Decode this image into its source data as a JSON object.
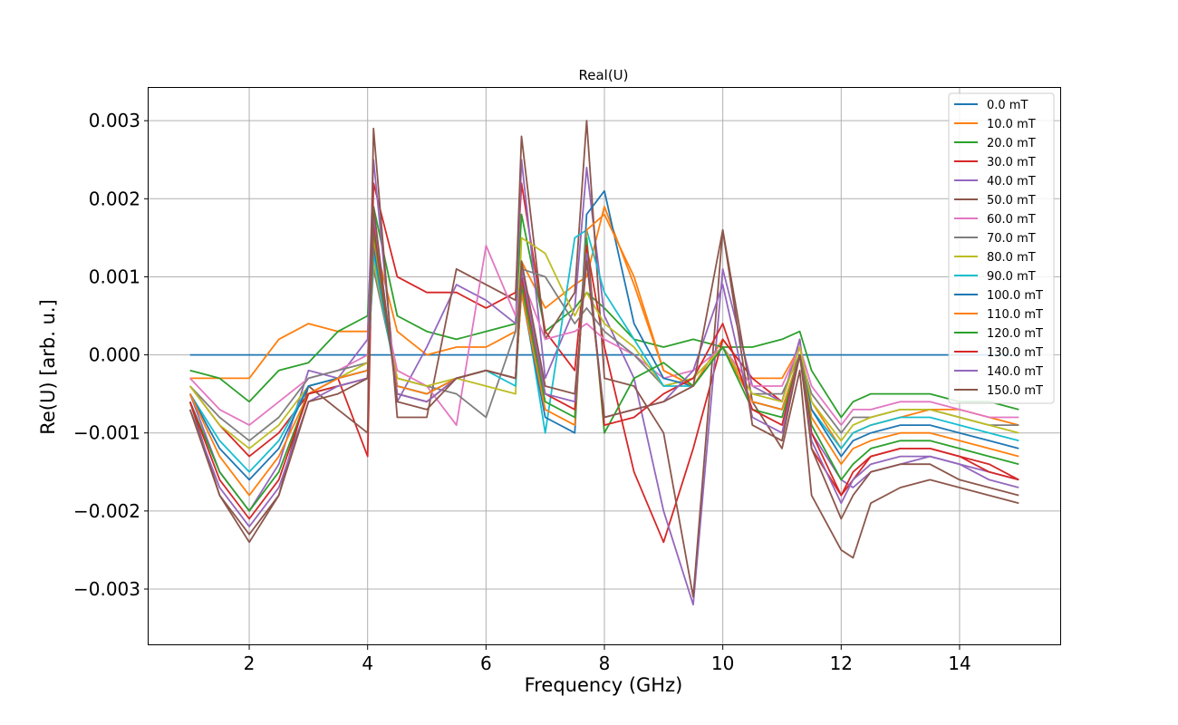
{
  "chart_data": {
    "type": "line",
    "title": "Real(U)",
    "xlabel": "Frequency (GHz)",
    "ylabel": "Re(U) [arb. u.]",
    "xlim": [
      0.3,
      15.7
    ],
    "ylim": [
      -0.00372,
      0.00342
    ],
    "xticks": [
      2,
      4,
      6,
      8,
      10,
      12,
      14
    ],
    "xtick_labels": [
      "2",
      "4",
      "6",
      "8",
      "10",
      "12",
      "14"
    ],
    "yticks": [
      -0.003,
      -0.002,
      -0.001,
      0.0,
      0.001,
      0.002,
      0.003
    ],
    "ytick_labels": [
      "−0.003",
      "−0.002",
      "−0.001",
      "0.000",
      "0.001",
      "0.002",
      "0.003"
    ],
    "grid": true,
    "legend_position": "top-right",
    "x": [
      1.0,
      1.5,
      2.0,
      2.5,
      3.0,
      3.5,
      4.0,
      4.1,
      4.5,
      5.0,
      5.5,
      6.0,
      6.5,
      6.6,
      7.0,
      7.5,
      7.7,
      8.0,
      8.5,
      9.0,
      9.5,
      10.0,
      10.5,
      11.0,
      11.3,
      11.5,
      12.0,
      12.2,
      12.5,
      13.0,
      13.5,
      14.0,
      14.5,
      15.0
    ],
    "series": [
      {
        "name": "0.0 mT",
        "color": "#1f77b4",
        "values": [
          0,
          0,
          0,
          0,
          0,
          0,
          0,
          0,
          0,
          0,
          0,
          0,
          0,
          0,
          0,
          0,
          0,
          0,
          0,
          0,
          0,
          0,
          0,
          0,
          0,
          0,
          0,
          0,
          0,
          0,
          0,
          0,
          0,
          0
        ]
      },
      {
        "name": "10.0 mT",
        "color": "#ff7f0e",
        "values": [
          -0.0003,
          -0.0003,
          -0.0003,
          0.0002,
          0.0004,
          0.0003,
          0.0003,
          0.0015,
          0.0003,
          0.0,
          0.0001,
          0.0001,
          0.0003,
          0.0012,
          0.0006,
          0.0009,
          0.001,
          0.0019,
          0.0009,
          -0.0002,
          -0.0004,
          0.0002,
          -0.0003,
          -0.0003,
          0.0001,
          -0.0006,
          -0.0012,
          -0.001,
          -0.0009,
          -0.0008,
          -0.0007,
          -0.0007,
          -0.0008,
          -0.0009
        ]
      },
      {
        "name": "20.0 mT",
        "color": "#2ca02c",
        "values": [
          -0.0002,
          -0.0003,
          -0.0006,
          -0.0002,
          -0.0001,
          0.0003,
          0.0005,
          0.0019,
          0.0005,
          0.0003,
          0.0002,
          0.0003,
          0.0004,
          0.0018,
          0.0003,
          0.0006,
          0.0008,
          0.0006,
          0.0002,
          0.0001,
          0.0002,
          0.0001,
          0.0001,
          0.0002,
          0.0003,
          -0.0002,
          -0.0008,
          -0.0006,
          -0.0005,
          -0.0005,
          -0.0005,
          -0.0006,
          -0.0006,
          -0.0007
        ]
      },
      {
        "name": "30.0 mT",
        "color": "#d62728",
        "values": [
          -0.0004,
          -0.0009,
          -0.0013,
          -0.001,
          -0.0005,
          -0.0003,
          -0.0013,
          0.0022,
          0.001,
          0.0008,
          0.0008,
          0.0006,
          0.0008,
          0.0022,
          0.0003,
          -0.0002,
          0.0014,
          0.0001,
          -0.0015,
          -0.0024,
          -0.0012,
          0.0002,
          -0.0003,
          -0.0006,
          0.0002,
          -0.0012,
          -0.0018,
          -0.0016,
          -0.0013,
          -0.0012,
          -0.0012,
          -0.0013,
          -0.0014,
          -0.0016
        ]
      },
      {
        "name": "40.0 mT",
        "color": "#9467bd",
        "values": [
          -0.0005,
          -0.0015,
          -0.002,
          -0.0014,
          -0.0002,
          -0.0003,
          0.0002,
          0.0025,
          -0.0006,
          0.0001,
          0.0009,
          0.0007,
          0.0004,
          0.0025,
          -0.0003,
          0.0006,
          0.0024,
          0.0005,
          -0.0003,
          -0.002,
          -0.0032,
          0.0011,
          -0.0004,
          -0.0006,
          0.0002,
          -0.001,
          -0.0016,
          -0.0017,
          -0.0015,
          -0.0014,
          -0.0013,
          -0.0014,
          -0.0015,
          -0.0016
        ]
      },
      {
        "name": "50.0 mT",
        "color": "#8c564b",
        "values": [
          -0.0006,
          -0.0018,
          -0.0024,
          -0.0018,
          -0.0004,
          -0.0007,
          -0.001,
          0.0029,
          -0.0008,
          -0.0008,
          0.0011,
          0.0009,
          0.0007,
          0.0028,
          0.0002,
          0.0008,
          0.003,
          -0.0003,
          -0.0004,
          -0.001,
          -0.0031,
          0.0016,
          -0.0006,
          -0.0012,
          -0.0002,
          -0.0018,
          -0.0025,
          -0.0026,
          -0.0019,
          -0.0017,
          -0.0016,
          -0.0017,
          -0.0018,
          -0.0019
        ]
      },
      {
        "name": "60.0 mT",
        "color": "#e377c2",
        "values": [
          -0.0003,
          -0.0007,
          -0.0009,
          -0.0006,
          -0.0003,
          -0.0002,
          0.0,
          0.0012,
          -0.0002,
          -0.0004,
          -0.0009,
          0.0014,
          0.0005,
          0.001,
          0.0002,
          0.0003,
          0.0004,
          0.0002,
          0.0,
          -0.0003,
          -0.0002,
          0.0001,
          -0.0004,
          -0.0004,
          0.0001,
          -0.0004,
          -0.0009,
          -0.0007,
          -0.0007,
          -0.0006,
          -0.0006,
          -0.0007,
          -0.0008,
          -0.0008
        ]
      },
      {
        "name": "70.0 mT",
        "color": "#7f7f7f",
        "values": [
          -0.0004,
          -0.0008,
          -0.0011,
          -0.0008,
          -0.0003,
          -0.0002,
          -0.0001,
          0.0011,
          -0.0003,
          -0.0004,
          -0.0005,
          -0.0008,
          0.0003,
          0.0011,
          0.001,
          0.0004,
          0.0006,
          0.0003,
          0.0,
          -0.0004,
          -0.0003,
          0.0001,
          -0.0005,
          -0.0005,
          0.0,
          -0.0005,
          -0.001,
          -0.0008,
          -0.0008,
          -0.0007,
          -0.0007,
          -0.0008,
          -0.0009,
          -0.0009
        ]
      },
      {
        "name": "80.0 mT",
        "color": "#bcbd22",
        "values": [
          -0.0004,
          -0.0009,
          -0.0012,
          -0.0009,
          -0.0004,
          -0.0003,
          -0.0001,
          0.0012,
          -0.0003,
          -0.0004,
          -0.0003,
          -0.0004,
          -0.0005,
          0.0015,
          0.0013,
          0.0005,
          0.0008,
          0.0004,
          0.0001,
          -0.0004,
          -0.0003,
          0.0001,
          -0.0005,
          -0.0006,
          0.0001,
          -0.0006,
          -0.0011,
          -0.0009,
          -0.0008,
          -0.0007,
          -0.0007,
          -0.0008,
          -0.0009,
          -0.001
        ]
      },
      {
        "name": "90.0 mT",
        "color": "#17becf",
        "values": [
          -0.0005,
          -0.0011,
          -0.0015,
          -0.0011,
          -0.0004,
          -0.0003,
          -0.0002,
          0.0013,
          -0.0004,
          -0.0005,
          -0.0003,
          -0.0002,
          -0.0004,
          0.0009,
          -0.001,
          0.0015,
          0.0016,
          0.0008,
          0.0002,
          -0.0004,
          -0.0004,
          0.0001,
          -0.0006,
          -0.0007,
          0.0,
          -0.0007,
          -0.0012,
          -0.001,
          -0.0009,
          -0.0008,
          -0.0008,
          -0.0009,
          -0.001,
          -0.0011
        ]
      },
      {
        "name": "100.0 mT",
        "color": "#1f77b4",
        "values": [
          -0.0005,
          -0.0012,
          -0.0016,
          -0.0012,
          -0.0004,
          -0.0003,
          -0.0002,
          0.0014,
          -0.0004,
          -0.0005,
          -0.0003,
          -0.0002,
          -0.0003,
          0.0008,
          -0.0008,
          -0.001,
          0.0018,
          0.0021,
          0.0004,
          -0.0003,
          -0.0004,
          0.0001,
          -0.0006,
          -0.0007,
          0.0,
          -0.0007,
          -0.0013,
          -0.0011,
          -0.001,
          -0.0009,
          -0.0009,
          -0.001,
          -0.0011,
          -0.0012
        ]
      },
      {
        "name": "110.0 mT",
        "color": "#ff7f0e",
        "values": [
          -0.0005,
          -0.0013,
          -0.0018,
          -0.0013,
          -0.0005,
          -0.0003,
          -0.0002,
          0.0015,
          -0.0004,
          -0.0005,
          -0.0003,
          -0.0002,
          -0.0003,
          0.0008,
          -0.0007,
          -0.0009,
          0.0016,
          0.0018,
          0.001,
          -0.0002,
          -0.0004,
          0.0001,
          -0.0006,
          -0.0007,
          0.0,
          -0.0008,
          -0.0014,
          -0.0012,
          -0.0011,
          -0.001,
          -0.001,
          -0.0011,
          -0.0012,
          -0.0013
        ]
      },
      {
        "name": "120.0 mT",
        "color": "#2ca02c",
        "values": [
          -0.0006,
          -0.0015,
          -0.002,
          -0.0015,
          -0.0005,
          -0.0004,
          -0.0003,
          0.0016,
          -0.0005,
          -0.0006,
          -0.0003,
          -0.0002,
          -0.0003,
          0.0009,
          -0.0006,
          -0.0008,
          0.0015,
          -0.001,
          -0.0003,
          -0.0001,
          -0.0004,
          0.0001,
          -0.0007,
          -0.0008,
          0.0,
          -0.0009,
          -0.0016,
          -0.0014,
          -0.0012,
          -0.0011,
          -0.0011,
          -0.0012,
          -0.0013,
          -0.0014
        ]
      },
      {
        "name": "130.0 mT",
        "color": "#d62728",
        "values": [
          -0.0006,
          -0.0016,
          -0.0021,
          -0.0016,
          -0.0005,
          -0.0004,
          -0.0003,
          0.0017,
          -0.0005,
          -0.0006,
          -0.0003,
          -0.0002,
          -0.0003,
          0.001,
          -0.0005,
          -0.0007,
          0.0014,
          -0.0009,
          -0.0008,
          -0.0005,
          -0.0003,
          0.0004,
          -0.0007,
          -0.0009,
          0.0,
          -0.001,
          -0.0018,
          -0.0015,
          -0.0013,
          -0.0012,
          -0.0012,
          -0.0013,
          -0.0015,
          -0.0016
        ]
      },
      {
        "name": "140.0 mT",
        "color": "#9467bd",
        "values": [
          -0.0007,
          -0.0017,
          -0.0022,
          -0.0017,
          -0.0006,
          -0.0004,
          -0.0003,
          0.0018,
          -0.0005,
          -0.0006,
          -0.0003,
          -0.0002,
          -0.0003,
          0.0011,
          -0.0005,
          -0.0006,
          0.0013,
          -0.0008,
          -0.0007,
          -0.0006,
          -0.0002,
          0.0009,
          -0.0008,
          -0.001,
          0.0,
          -0.0011,
          -0.0019,
          -0.0016,
          -0.0014,
          -0.0013,
          -0.0013,
          -0.0014,
          -0.0016,
          -0.0017
        ]
      },
      {
        "name": "150.0 mT",
        "color": "#8c564b",
        "values": [
          -0.0007,
          -0.0018,
          -0.0023,
          -0.0018,
          -0.0006,
          -0.0005,
          -0.0003,
          0.0019,
          -0.0006,
          -0.0007,
          -0.0003,
          -0.0002,
          -0.0003,
          0.0012,
          -0.0004,
          -0.0005,
          0.0012,
          -0.0008,
          -0.0007,
          -0.0006,
          -0.0004,
          0.0016,
          -0.0009,
          -0.0011,
          0.0,
          -0.0012,
          -0.0021,
          -0.0018,
          -0.0015,
          -0.0014,
          -0.0014,
          -0.0016,
          -0.0017,
          -0.0018
        ]
      }
    ]
  }
}
